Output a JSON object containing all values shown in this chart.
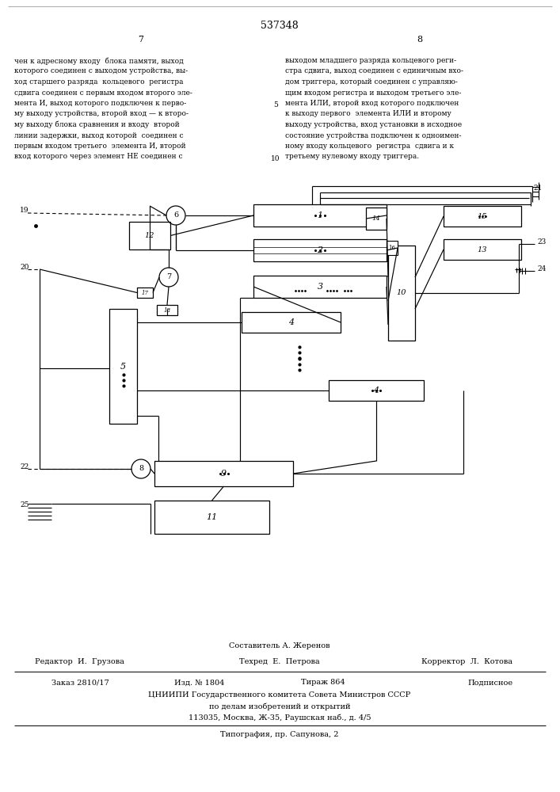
{
  "title": "537348",
  "page_left": "7",
  "page_right": "8",
  "text_left": "чен к адресному входу  блока памяти, выход\nкоторого соединен с выходом устройства, вы-\nход старшего разряда  кольцевого  регистра\nсдвига соединен с первым входом второго эле-\nмента И, выход которого подключен к перво-\nму выходу устройства, второй вход — к второ-\nму выходу блока сравнения и входу  второй\nлинии задержки, выход которой  соединен с\nпервым входом третьего  элемента И, второй\nвход которого через элемент НЕ соединен с",
  "text_right": "выходом младшего разряда кольцевого реги-\nстра сдвига, выход соединен с единичным вхо-\nдом триггера, который соединен с управляю-\nщим входом регистра и выходом третьего эле-\nмента ИЛИ, второй вход которого подключен\nк выходу первого  элемента ИЛИ и второму\nвыходу устройства, вход установки в исходное\nсостояние устройства подключен к одноимен-\nному входу кольцевого  регистра  сдвига и к\nтретьему нулевому входу триггера.",
  "line_num_5": "5",
  "line_num_10": "10",
  "footer_composer": "Составитель А. Жеренов",
  "footer_editor": "Редактор  И.  Грузова",
  "footer_tech": "Техред  Е.  Петрова",
  "footer_corrector": "Корректор  Л.  Котова",
  "footer_order": "Заказ 2810/17",
  "footer_pub": "Изд. № 1804",
  "footer_circ": "Тираж 864",
  "footer_sign": "Подписное",
  "footer_org": "ЦНИИПИ Государственного комитета Совета Министров СССР",
  "footer_org2": "по делам изобретений и открытий",
  "footer_addr": "113035, Москва, Ж-35, Раушская наб., д. 4/5",
  "footer_print": "Типография, пр. Сапунова, 2",
  "bg_color": "#ffffff"
}
